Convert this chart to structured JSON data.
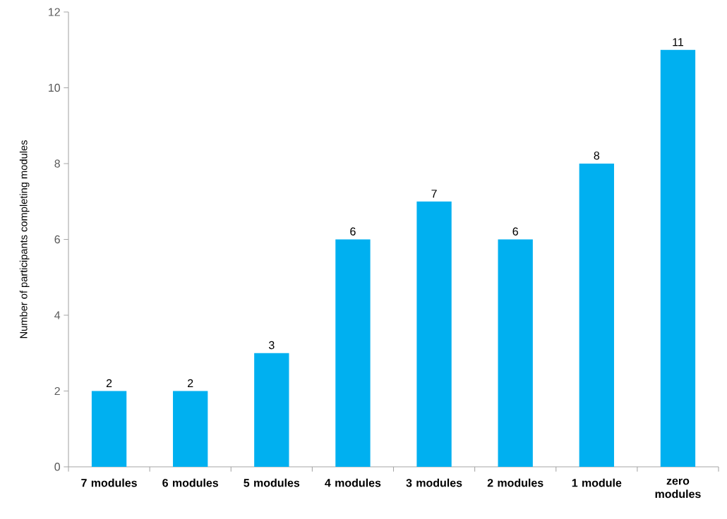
{
  "chart_data": {
    "type": "bar",
    "ylabel": "Number of participants completing modules",
    "categories": [
      "7 modules",
      "6 modules",
      "5 modules",
      "4 modules",
      "3 modules",
      "2 modules",
      "1 module",
      "zero modules"
    ],
    "values": [
      2,
      2,
      3,
      6,
      7,
      6,
      8,
      11
    ],
    "color": "#00b0f0",
    "ylim": [
      0,
      12
    ],
    "yticks": [
      0,
      2,
      4,
      6,
      8,
      10,
      12
    ],
    "data_labels": true
  }
}
